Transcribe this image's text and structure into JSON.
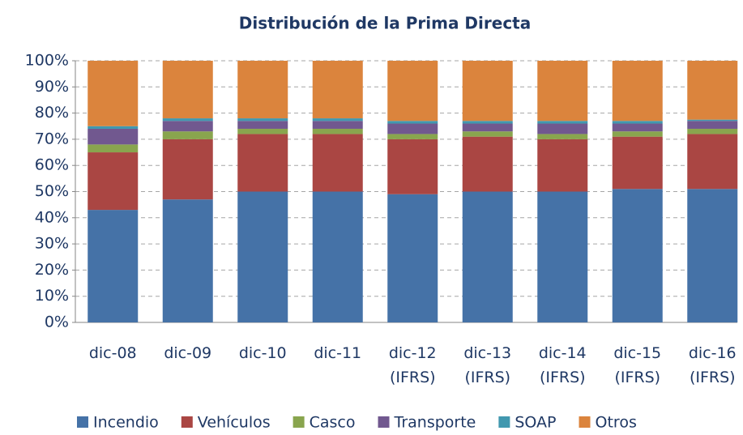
{
  "chart_data": {
    "type": "stacked_bar",
    "title": "Distribución de la Prima Directa",
    "categories": [
      "dic-08",
      "dic-09",
      "dic-10",
      "dic-11",
      "dic-12 (IFRS)",
      "dic-13 (IFRS)",
      "dic-14 (IFRS)",
      "dic-15 (IFRS)",
      "dic-16 (IFRS)"
    ],
    "series": [
      {
        "name": "Incendio",
        "color": "#4572a7",
        "values": [
          43,
          47,
          50,
          50,
          49,
          50,
          50,
          51,
          51
        ]
      },
      {
        "name": "Vehículos",
        "color": "#aa4643",
        "values": [
          22,
          23,
          22,
          22,
          21,
          21,
          20,
          20,
          21
        ]
      },
      {
        "name": "Casco",
        "color": "#89a54e",
        "values": [
          3,
          3,
          2,
          2,
          2,
          2,
          2,
          2,
          2
        ]
      },
      {
        "name": "Transporte",
        "color": "#71588f",
        "values": [
          6,
          4,
          3,
          3,
          4,
          3,
          4,
          3,
          3
        ]
      },
      {
        "name": "SOAP",
        "color": "#4198af",
        "values": [
          1,
          1,
          1,
          1,
          1,
          1,
          1,
          1,
          0.5
        ]
      },
      {
        "name": "Otros",
        "color": "#db843d",
        "values": [
          25,
          22,
          22,
          22,
          23,
          23,
          23,
          23,
          22.5
        ]
      }
    ],
    "ylim": [
      0,
      100
    ],
    "yticks": [
      {
        "value": 0,
        "label": "0%"
      },
      {
        "value": 10,
        "label": "10%"
      },
      {
        "value": 20,
        "label": "20%"
      },
      {
        "value": 30,
        "label": "30%"
      },
      {
        "value": 40,
        "label": "40%"
      },
      {
        "value": 50,
        "label": "50%"
      },
      {
        "value": 60,
        "label": "60%"
      },
      {
        "value": 70,
        "label": "70%"
      },
      {
        "value": 80,
        "label": "80%"
      },
      {
        "value": 90,
        "label": "90%"
      },
      {
        "value": 100,
        "label": "100%"
      }
    ],
    "grid": true,
    "legend": "bottom"
  }
}
